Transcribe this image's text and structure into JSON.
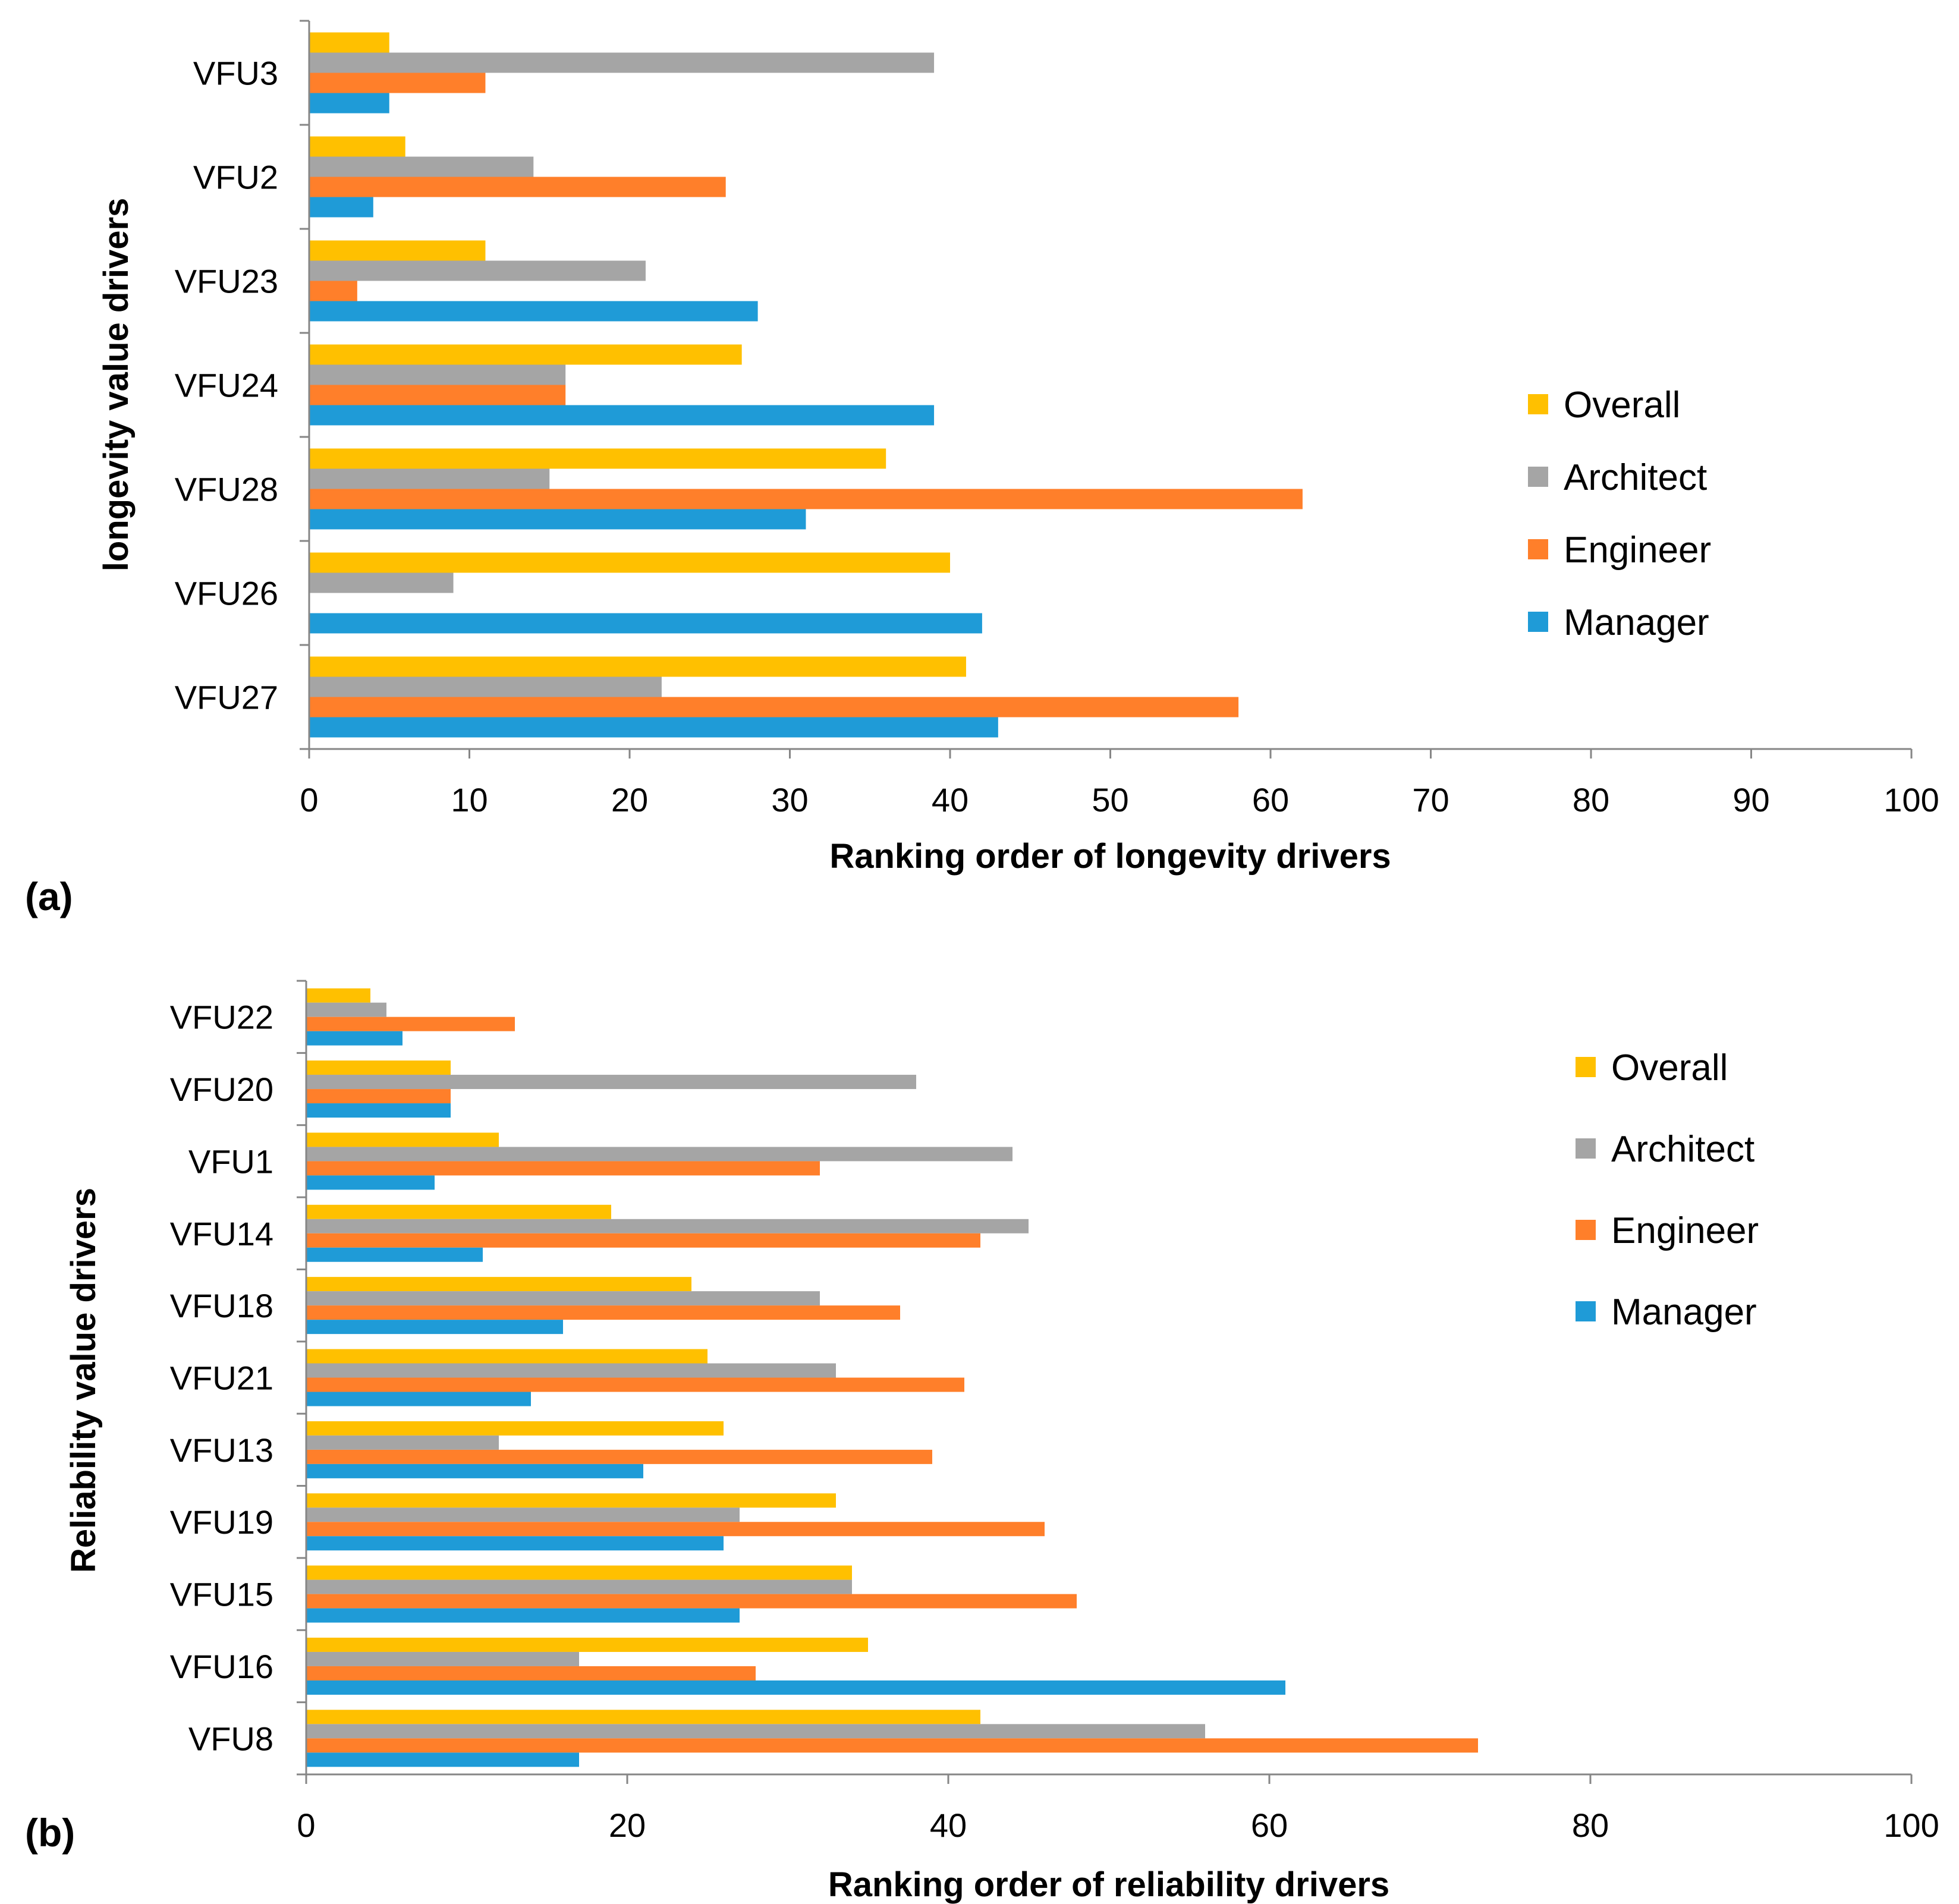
{
  "colors": {
    "Overall": "#FFC000",
    "Architect": "#A5A5A5",
    "Engineer": "#FF7F2A",
    "Manager": "#1F9BD7"
  },
  "panels": {
    "a": {
      "label": "(a)"
    },
    "b": {
      "label": "(b)"
    }
  },
  "chart_data": [
    {
      "type": "bar",
      "orientation": "horizontal",
      "panel": "(a)",
      "categories": [
        "VFU3",
        "VFU2",
        "VFU23",
        "VFU24",
        "VFU28",
        "VFU26",
        "VFU27"
      ],
      "series": [
        {
          "name": "Overall",
          "values": [
            5,
            6,
            11,
            27,
            36,
            40,
            41
          ]
        },
        {
          "name": "Architect",
          "values": [
            39,
            14,
            21,
            16,
            15,
            9,
            22
          ]
        },
        {
          "name": "Engineer",
          "values": [
            11,
            26,
            3,
            16,
            62,
            0,
            58
          ]
        },
        {
          "name": "Manager",
          "values": [
            5,
            4,
            28,
            39,
            31,
            42,
            43
          ]
        }
      ],
      "xlabel": "Ranking order of longevity drivers",
      "ylabel": "longevity value drivers",
      "xlim": [
        0,
        100
      ],
      "xticks": [
        0,
        10,
        20,
        30,
        40,
        50,
        60,
        70,
        80,
        90,
        100
      ],
      "legend": [
        "Overall",
        "Architect",
        "Engineer",
        "Manager"
      ],
      "legend_position": "right",
      "grid": false
    },
    {
      "type": "bar",
      "orientation": "horizontal",
      "panel": "(b)",
      "categories": [
        "VFU22",
        "VFU20",
        "VFU1",
        "VFU14",
        "VFU18",
        "VFU21",
        "VFU13",
        "VFU19",
        "VFU15",
        "VFU16",
        "VFU8"
      ],
      "series": [
        {
          "name": "Overall",
          "values": [
            4,
            9,
            12,
            19,
            24,
            25,
            26,
            33,
            34,
            35,
            42
          ]
        },
        {
          "name": "Architect",
          "values": [
            5,
            38,
            44,
            45,
            32,
            33,
            12,
            27,
            34,
            17,
            56
          ]
        },
        {
          "name": "Engineer",
          "values": [
            13,
            9,
            32,
            42,
            37,
            41,
            39,
            46,
            48,
            28,
            73
          ]
        },
        {
          "name": "Manager",
          "values": [
            6,
            9,
            8,
            11,
            16,
            14,
            21,
            26,
            27,
            61,
            17
          ]
        }
      ],
      "xlabel": "Ranking order of reliability drivers",
      "ylabel": "Reliability value drivers",
      "xlim": [
        0,
        100
      ],
      "xticks": [
        0,
        20,
        40,
        60,
        80,
        100
      ],
      "legend": [
        "Overall",
        "Architect",
        "Engineer",
        "Manager"
      ],
      "legend_position": "top-right",
      "grid": false
    }
  ]
}
